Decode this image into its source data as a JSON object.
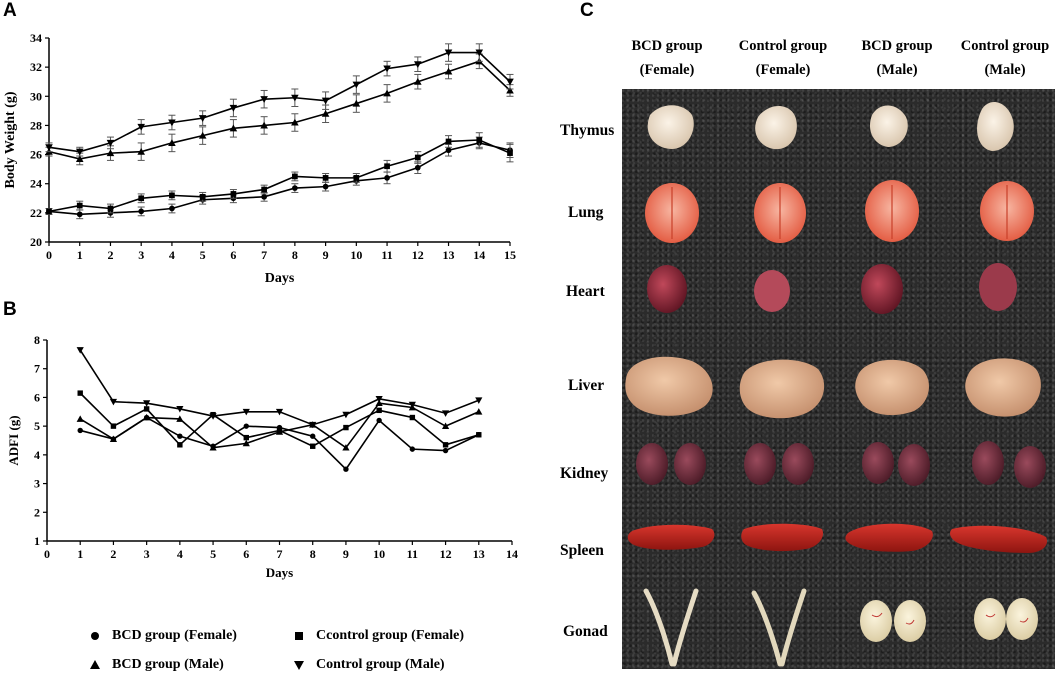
{
  "panels": {
    "a": "A",
    "b": "B",
    "c": "C"
  },
  "legend": [
    {
      "label": "BCD group (Female)",
      "marker": "circle"
    },
    {
      "label": "Ccontrol group (Female)",
      "marker": "square"
    },
    {
      "label": "BCD group (Male)",
      "marker": "triangle-up"
    },
    {
      "label": "Control group (Male)",
      "marker": "triangle-down"
    }
  ],
  "chart_data": [
    {
      "type": "line",
      "xlabel": "Days",
      "ylabel": "Body Weight (g)",
      "xlim": [
        0,
        15
      ],
      "ylim": [
        20,
        34
      ],
      "xticks": [
        0,
        1,
        2,
        3,
        4,
        5,
        6,
        7,
        8,
        9,
        10,
        11,
        12,
        13,
        14,
        15
      ],
      "yticks": [
        20,
        22,
        24,
        26,
        28,
        30,
        32,
        34
      ],
      "error_bars": true,
      "x": [
        0,
        1,
        2,
        3,
        4,
        5,
        6,
        7,
        8,
        9,
        10,
        11,
        12,
        13,
        14,
        15
      ],
      "series": [
        {
          "name": "BCD group (Female)",
          "marker": "circle",
          "values": [
            22.1,
            21.9,
            22.0,
            22.1,
            22.3,
            22.9,
            23.0,
            23.1,
            23.7,
            23.8,
            24.2,
            24.4,
            25.1,
            26.3,
            26.8,
            26.3
          ],
          "errors": [
            0.2,
            0.3,
            0.3,
            0.3,
            0.3,
            0.3,
            0.3,
            0.3,
            0.3,
            0.3,
            0.3,
            0.4,
            0.4,
            0.4,
            0.4,
            0.5
          ]
        },
        {
          "name": "Ccontrol group (Female)",
          "marker": "square",
          "values": [
            22.1,
            22.5,
            22.3,
            23.0,
            23.2,
            23.1,
            23.3,
            23.6,
            24.5,
            24.4,
            24.4,
            25.2,
            25.8,
            26.9,
            27.0,
            26.1
          ],
          "errors": [
            0.2,
            0.3,
            0.3,
            0.3,
            0.3,
            0.3,
            0.3,
            0.3,
            0.3,
            0.3,
            0.3,
            0.4,
            0.4,
            0.4,
            0.5,
            0.6
          ]
        },
        {
          "name": "BCD group (Male)",
          "marker": "triangle-up",
          "values": [
            26.2,
            25.7,
            26.1,
            26.2,
            26.8,
            27.3,
            27.8,
            28.0,
            28.2,
            28.8,
            29.5,
            30.2,
            31.0,
            31.7,
            32.4,
            30.4
          ],
          "errors": [
            0.3,
            0.4,
            0.5,
            0.6,
            0.6,
            0.6,
            0.6,
            0.6,
            0.6,
            0.6,
            0.6,
            0.6,
            0.5,
            0.5,
            0.5,
            0.4
          ]
        },
        {
          "name": "Control group (Male)",
          "marker": "triangle-down",
          "values": [
            26.5,
            26.2,
            26.8,
            27.9,
            28.2,
            28.5,
            29.2,
            29.8,
            29.9,
            29.7,
            30.8,
            31.9,
            32.2,
            33.0,
            33.0,
            31.0
          ],
          "errors": [
            0.3,
            0.3,
            0.4,
            0.5,
            0.5,
            0.5,
            0.6,
            0.6,
            0.6,
            0.6,
            0.6,
            0.5,
            0.5,
            0.6,
            0.6,
            0.5
          ]
        }
      ]
    },
    {
      "type": "line",
      "xlabel": "Days",
      "ylabel": "ADFI (g)",
      "xlim": [
        0,
        14
      ],
      "ylim": [
        1,
        8
      ],
      "xticks": [
        0,
        1,
        2,
        3,
        4,
        5,
        6,
        7,
        8,
        9,
        10,
        11,
        12,
        13,
        14
      ],
      "yticks": [
        1,
        2,
        3,
        4,
        5,
        6,
        7,
        8
      ],
      "x": [
        1,
        2,
        3,
        4,
        5,
        6,
        7,
        8,
        9,
        10,
        11,
        12,
        13
      ],
      "series": [
        {
          "name": "BCD group (Female)",
          "marker": "circle",
          "values": [
            4.85,
            4.55,
            5.3,
            4.65,
            4.3,
            5.0,
            4.95,
            4.65,
            3.5,
            5.2,
            4.2,
            4.15,
            4.7
          ]
        },
        {
          "name": "Ccontrol group (Female)",
          "marker": "square",
          "values": [
            6.15,
            5.0,
            5.6,
            4.35,
            5.4,
            4.6,
            4.85,
            4.3,
            4.95,
            5.55,
            5.3,
            4.35,
            4.7
          ]
        },
        {
          "name": "BCD group (Male)",
          "marker": "triangle-up",
          "values": [
            5.25,
            4.55,
            5.3,
            5.25,
            4.25,
            4.4,
            4.8,
            5.05,
            4.25,
            5.8,
            5.65,
            5.0,
            5.5
          ]
        },
        {
          "name": "Control group (Male)",
          "marker": "triangle-down",
          "values": [
            7.65,
            5.85,
            5.8,
            5.6,
            5.35,
            5.5,
            5.5,
            5.05,
            5.4,
            5.95,
            5.75,
            5.45,
            5.9
          ]
        }
      ]
    }
  ],
  "organ_panel": {
    "columns": [
      {
        "line1": "BCD group",
        "line2": "(Female)"
      },
      {
        "line1": "Control group",
        "line2": "(Female)"
      },
      {
        "line1": "BCD group",
        "line2": "(Male)"
      },
      {
        "line1": "Control group",
        "line2": "(Male)"
      }
    ],
    "rows": [
      "Thymus",
      "Lung",
      "Heart",
      "Liver",
      "Kidney",
      "Spleen",
      "Gonad"
    ]
  }
}
